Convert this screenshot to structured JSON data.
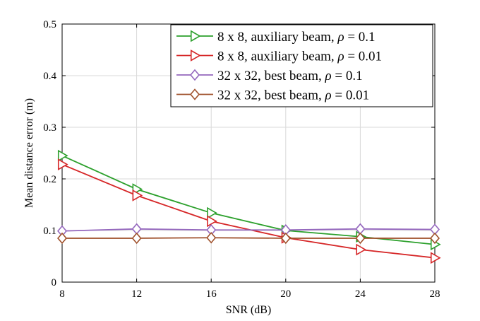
{
  "chart_data": {
    "type": "line",
    "title": "",
    "xlabel": "SNR (dB)",
    "ylabel": "Mean distance error (m)",
    "x": [
      8,
      12,
      16,
      20,
      24,
      28
    ],
    "xlim": [
      8,
      28
    ],
    "ylim": [
      0,
      0.5
    ],
    "xticks": [
      "8",
      "12",
      "16",
      "20",
      "24",
      "28"
    ],
    "yticks": [
      "0",
      "0.1",
      "0.2",
      "0.3",
      "0.4",
      "0.5"
    ],
    "grid": true,
    "legend_position": "top-right",
    "series": [
      {
        "name": "8 x 8, auxiliary beam, ρ = 0.1",
        "name_prefix": "8 x 8, auxiliary beam, ",
        "name_suffix": " = 0.1",
        "color": "#2ca02c",
        "marker": "triangle-right",
        "values": [
          0.245,
          0.18,
          0.134,
          0.1,
          0.088,
          0.073
        ]
      },
      {
        "name": "8 x 8, auxiliary beam, ρ = 0.01",
        "name_prefix": "8 x 8, auxiliary beam, ",
        "name_suffix": " = 0.01",
        "color": "#d62728",
        "marker": "triangle-right",
        "values": [
          0.228,
          0.168,
          0.118,
          0.086,
          0.063,
          0.047
        ]
      },
      {
        "name": "32 x 32, best beam, ρ = 0.1",
        "name_prefix": "32 x 32, best beam, ",
        "name_suffix": " = 0.1",
        "color": "#9467bd",
        "marker": "diamond",
        "values": [
          0.099,
          0.103,
          0.101,
          0.101,
          0.103,
          0.102
        ]
      },
      {
        "name": "32 x 32, best beam, ρ = 0.01",
        "name_prefix": "32 x 32, best beam, ",
        "name_suffix": " = 0.01",
        "color": "#a0522d",
        "marker": "diamond",
        "values": [
          0.085,
          0.085,
          0.086,
          0.085,
          0.085,
          0.085
        ]
      }
    ],
    "legend_symbol": "ρ"
  }
}
